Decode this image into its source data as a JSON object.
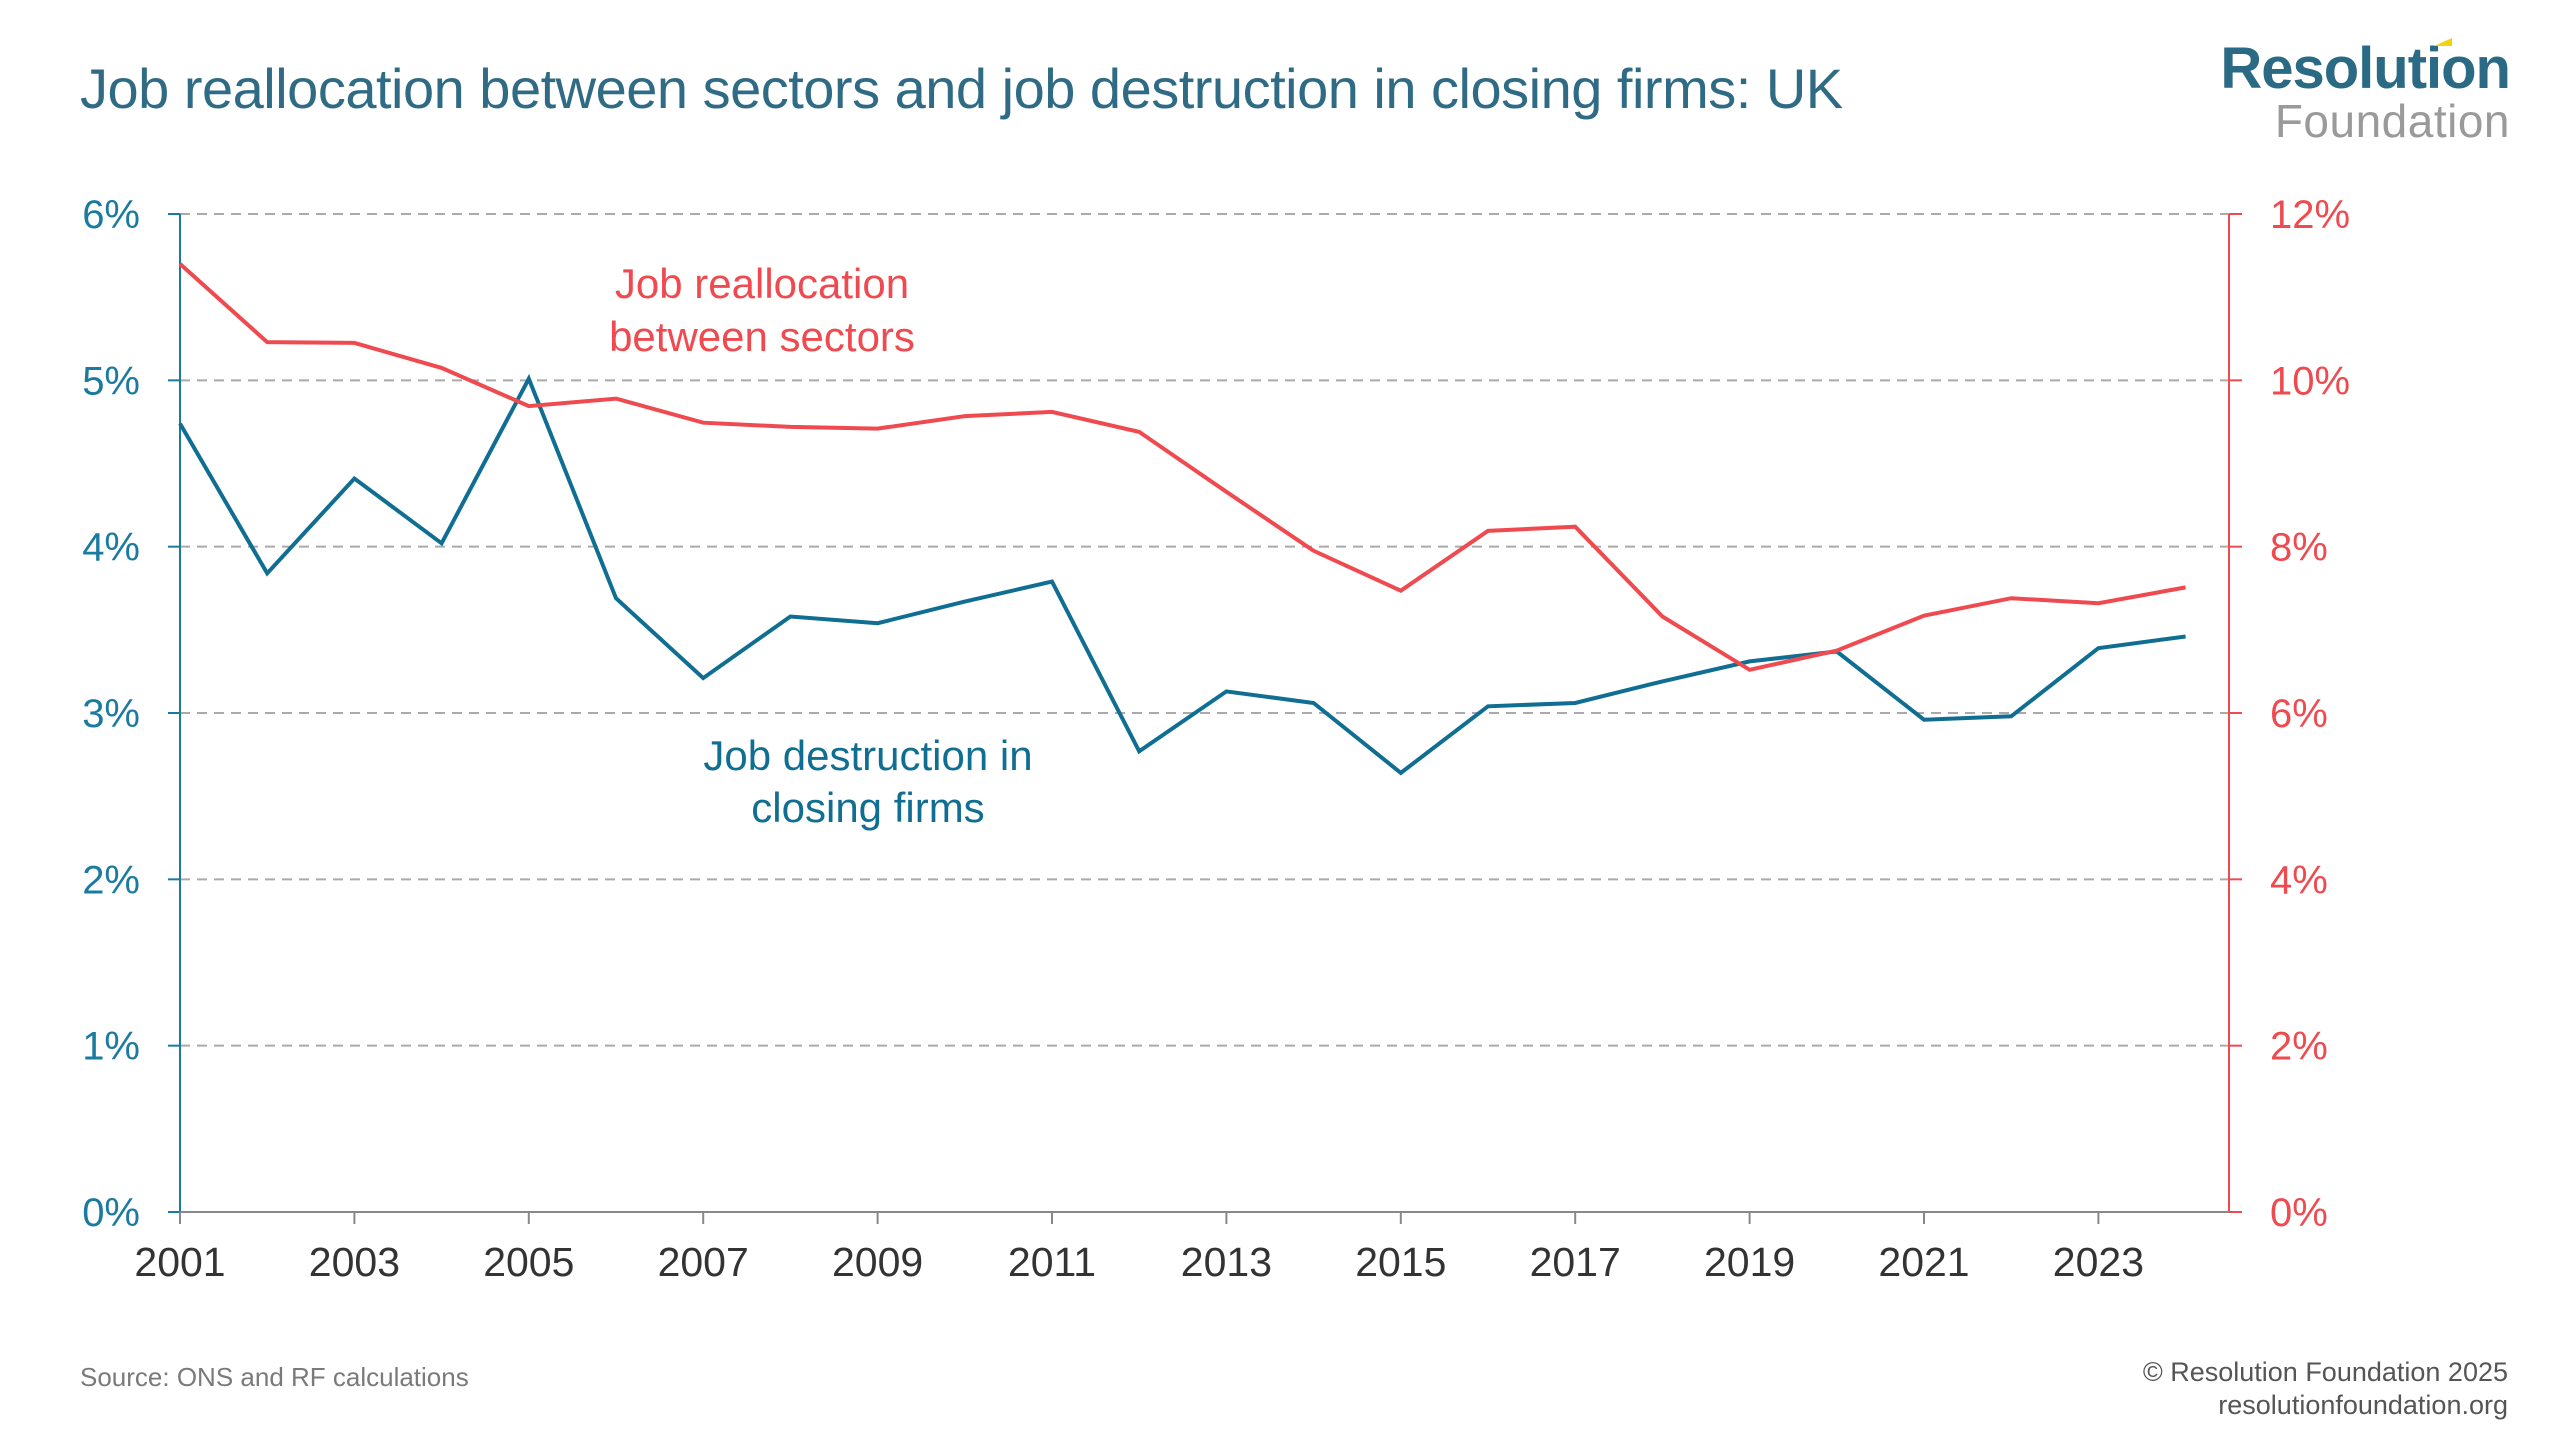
{
  "header": {
    "title": "Job reallocation between sectors and job destruction in closing firms: UK",
    "logo_top": "Resolution",
    "logo_bottom": "Foundation"
  },
  "footer": {
    "source": "Source: ONS and RF calculations",
    "copyright": "© Resolution Foundation 2025",
    "website": "resolutionfoundation.org"
  },
  "colors": {
    "title": "#2f6b84",
    "left_axis": "#1a7aa0",
    "right_axis": "#ef4a4f",
    "destruction_line": "#0f6e92",
    "reallocation_line": "#ef4a4f",
    "grid": "#aaaaaa",
    "x_axis_text": "#333333"
  },
  "chart_data": {
    "type": "line",
    "title": "Job reallocation between sectors and job destruction in closing firms: UK",
    "xlabel": "",
    "x": [
      2001,
      2002,
      2003,
      2004,
      2005,
      2006,
      2007,
      2008,
      2009,
      2010,
      2011,
      2012,
      2013,
      2014,
      2015,
      2016,
      2017,
      2018,
      2019,
      2020,
      2021,
      2022,
      2023,
      2024
    ],
    "x_ticks": [
      "2001",
      "2003",
      "2005",
      "2007",
      "2009",
      "2011",
      "2013",
      "2015",
      "2017",
      "2019",
      "2021",
      "2023"
    ],
    "x_tick_values": [
      2001,
      2003,
      2005,
      2007,
      2009,
      2011,
      2013,
      2015,
      2017,
      2019,
      2021,
      2023
    ],
    "xlim": [
      2001,
      2024.5
    ],
    "y_left": {
      "ylim": [
        0,
        6
      ],
      "ticks": [
        0,
        1,
        2,
        3,
        4,
        5,
        6
      ],
      "tick_labels": [
        "0%",
        "1%",
        "2%",
        "3%",
        "4%",
        "5%",
        "6%"
      ]
    },
    "y_right": {
      "ylim": [
        0,
        12
      ],
      "ticks": [
        0,
        2,
        4,
        6,
        8,
        10,
        12
      ],
      "tick_labels": [
        "0%",
        "2%",
        "4%",
        "6%",
        "8%",
        "10%",
        "12%"
      ]
    },
    "grid": true,
    "series": [
      {
        "name": "Job destruction in closing firms",
        "label_lines": [
          "Job destruction in",
          "closing firms"
        ],
        "axis": "left",
        "values": [
          4.74,
          3.84,
          4.41,
          4.02,
          5.01,
          3.69,
          3.21,
          3.58,
          3.54,
          3.67,
          3.79,
          2.77,
          3.13,
          3.06,
          2.64,
          3.04,
          3.06,
          3.19,
          3.31,
          3.37,
          2.96,
          2.98,
          3.39,
          3.46
        ]
      },
      {
        "name": "Job reallocation between sectors",
        "label_lines": [
          "Job reallocation",
          "between sectors"
        ],
        "axis": "right",
        "values": [
          11.4,
          10.46,
          10.45,
          10.15,
          9.69,
          9.78,
          9.49,
          9.44,
          9.42,
          9.57,
          9.62,
          9.38,
          8.66,
          7.95,
          7.47,
          8.19,
          8.24,
          7.16,
          6.52,
          6.75,
          7.17,
          7.38,
          7.32,
          7.51
        ]
      }
    ]
  }
}
